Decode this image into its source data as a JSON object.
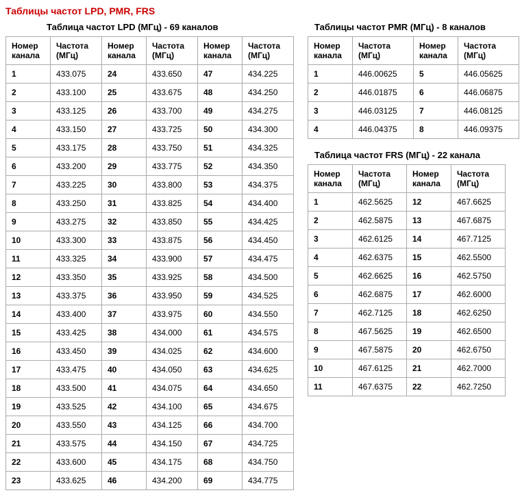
{
  "main_title": "Таблицы частот LPD, PMR, FRS",
  "headers": {
    "ch": "Номер канала",
    "freq": "Частота (МГц)"
  },
  "lpd": {
    "title": "Таблица частот LPD (МГц) - 69 каналов",
    "rows": [
      [
        [
          "1",
          "433.075"
        ],
        [
          "24",
          "433.650"
        ],
        [
          "47",
          "434.225"
        ]
      ],
      [
        [
          "2",
          "433.100"
        ],
        [
          "25",
          "433.675"
        ],
        [
          "48",
          "434.250"
        ]
      ],
      [
        [
          "3",
          "433.125"
        ],
        [
          "26",
          "433.700"
        ],
        [
          "49",
          "434.275"
        ]
      ],
      [
        [
          "4",
          "433.150"
        ],
        [
          "27",
          "433.725"
        ],
        [
          "50",
          "434.300"
        ]
      ],
      [
        [
          "5",
          "433.175"
        ],
        [
          "28",
          "433.750"
        ],
        [
          "51",
          "434.325"
        ]
      ],
      [
        [
          "6",
          "433.200"
        ],
        [
          "29",
          "433.775"
        ],
        [
          "52",
          "434.350"
        ]
      ],
      [
        [
          "7",
          "433.225"
        ],
        [
          "30",
          "433.800"
        ],
        [
          "53",
          "434.375"
        ]
      ],
      [
        [
          "8",
          "433.250"
        ],
        [
          "31",
          "433.825"
        ],
        [
          "54",
          "434.400"
        ]
      ],
      [
        [
          "9",
          "433.275"
        ],
        [
          "32",
          "433.850"
        ],
        [
          "55",
          "434.425"
        ]
      ],
      [
        [
          "10",
          "433.300"
        ],
        [
          "33",
          "433.875"
        ],
        [
          "56",
          "434.450"
        ]
      ],
      [
        [
          "11",
          "433.325"
        ],
        [
          "34",
          "433.900"
        ],
        [
          "57",
          "434.475"
        ]
      ],
      [
        [
          "12",
          "433.350"
        ],
        [
          "35",
          "433.925"
        ],
        [
          "58",
          "434.500"
        ]
      ],
      [
        [
          "13",
          "433.375"
        ],
        [
          "36",
          "433.950"
        ],
        [
          "59",
          "434.525"
        ]
      ],
      [
        [
          "14",
          "433.400"
        ],
        [
          "37",
          "433.975"
        ],
        [
          "60",
          "434.550"
        ]
      ],
      [
        [
          "15",
          "433.425"
        ],
        [
          "38",
          "434.000"
        ],
        [
          "61",
          "434.575"
        ]
      ],
      [
        [
          "16",
          "433.450"
        ],
        [
          "39",
          "434.025"
        ],
        [
          "62",
          "434.600"
        ]
      ],
      [
        [
          "17",
          "433.475"
        ],
        [
          "40",
          "434.050"
        ],
        [
          "63",
          "434.625"
        ]
      ],
      [
        [
          "18",
          "433.500"
        ],
        [
          "41",
          "434.075"
        ],
        [
          "64",
          "434.650"
        ]
      ],
      [
        [
          "19",
          "433.525"
        ],
        [
          "42",
          "434.100"
        ],
        [
          "65",
          "434.675"
        ]
      ],
      [
        [
          "20",
          "433.550"
        ],
        [
          "43",
          "434.125"
        ],
        [
          "66",
          "434.700"
        ]
      ],
      [
        [
          "21",
          "433.575"
        ],
        [
          "44",
          "434.150"
        ],
        [
          "67",
          "434.725"
        ]
      ],
      [
        [
          "22",
          "433.600"
        ],
        [
          "45",
          "434.175"
        ],
        [
          "68",
          "434.750"
        ]
      ],
      [
        [
          "23",
          "433.625"
        ],
        [
          "46",
          "434.200"
        ],
        [
          "69",
          "434.775"
        ]
      ]
    ]
  },
  "pmr": {
    "title": "Таблицы частот PMR (МГц) - 8 каналов",
    "rows": [
      [
        [
          "1",
          "446.00625"
        ],
        [
          "5",
          "446.05625"
        ]
      ],
      [
        [
          "2",
          "446.01875"
        ],
        [
          "6",
          "446.06875"
        ]
      ],
      [
        [
          "3",
          "446.03125"
        ],
        [
          "7",
          "446.08125"
        ]
      ],
      [
        [
          "4",
          "446.04375"
        ],
        [
          "8",
          "446.09375"
        ]
      ]
    ]
  },
  "frs": {
    "title": "Таблица частот FRS (МГц) - 22 канала",
    "rows": [
      [
        [
          "1",
          "462.5625"
        ],
        [
          "12",
          "467.6625"
        ]
      ],
      [
        [
          "2",
          "462.5875"
        ],
        [
          "13",
          "467.6875"
        ]
      ],
      [
        [
          "3",
          "462.6125"
        ],
        [
          "14",
          "467.7125"
        ]
      ],
      [
        [
          "4",
          "462.6375"
        ],
        [
          "15",
          "462.5500"
        ]
      ],
      [
        [
          "5",
          "462.6625"
        ],
        [
          "16",
          "462.5750"
        ]
      ],
      [
        [
          "6",
          "462.6875"
        ],
        [
          "17",
          "462.6000"
        ]
      ],
      [
        [
          "7",
          "462.7125"
        ],
        [
          "18",
          "462.6250"
        ]
      ],
      [
        [
          "8",
          "467.5625"
        ],
        [
          "19",
          "462.6500"
        ]
      ],
      [
        [
          "9",
          "467.5875"
        ],
        [
          "20",
          "462.6750"
        ]
      ],
      [
        [
          "10",
          "467.6125"
        ],
        [
          "21",
          "462.7000"
        ]
      ],
      [
        [
          "11",
          "467.6375"
        ],
        [
          "22",
          "462.7250"
        ]
      ]
    ]
  }
}
